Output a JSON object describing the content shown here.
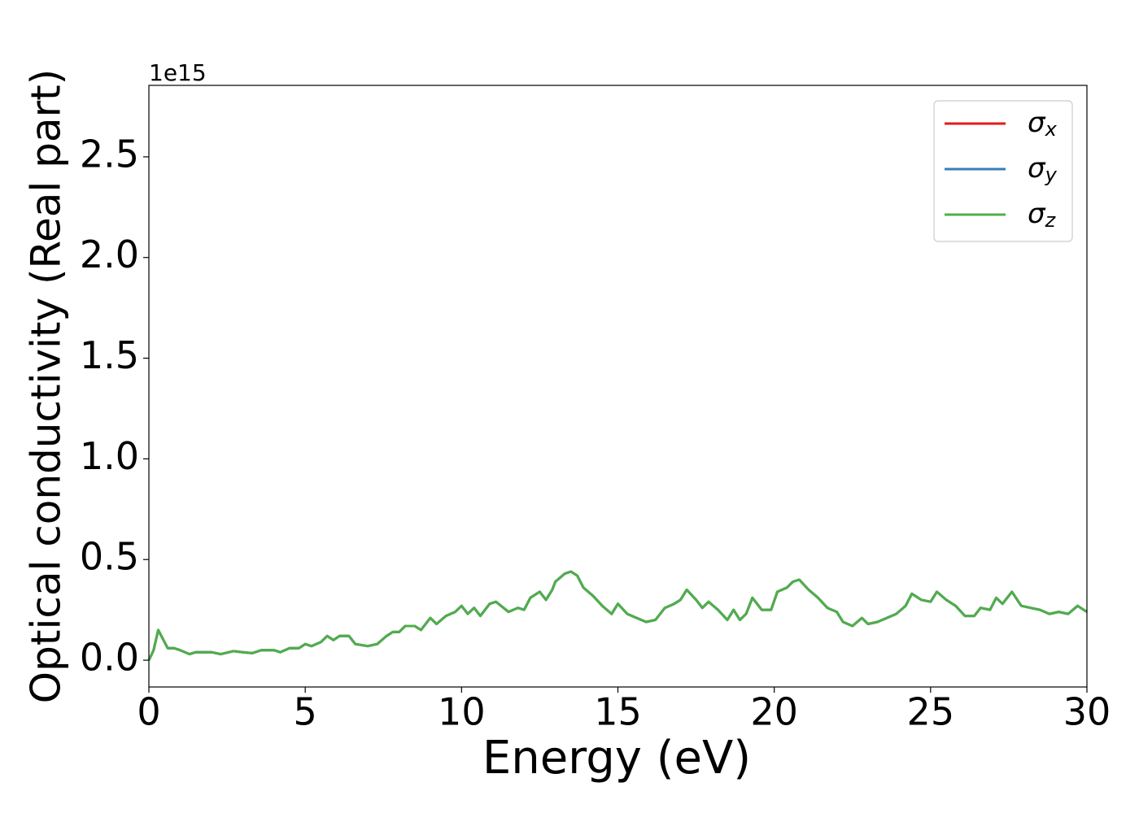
{
  "chart_data": {
    "type": "line",
    "x_label": "Energy (eV)",
    "y_label": "Optical conductivity (Real part)",
    "y_offset_label": "1e15",
    "xlim": [
      0,
      30
    ],
    "xticks": [
      0,
      5,
      10,
      15,
      20,
      25,
      30
    ],
    "ylim": [
      -0.133,
      2.855
    ],
    "yticks": [
      {
        "value": 0,
        "label": "0.0"
      },
      0.5,
      {
        "value": 1,
        "label": "1.0"
      },
      1.5,
      {
        "value": 2,
        "label": "2.0"
      },
      2.5
    ],
    "legend": "upper right",
    "x": [
      0,
      0.15,
      0.3,
      0.6,
      0.8,
      1.0,
      1.3,
      1.5,
      2.0,
      2.3,
      2.7,
      3.0,
      3.3,
      3.6,
      4.0,
      4.2,
      4.5,
      4.8,
      5.0,
      5.2,
      5.5,
      5.7,
      5.9,
      6.1,
      6.4,
      6.6,
      7.0,
      7.3,
      7.6,
      7.8,
      8.0,
      8.2,
      8.5,
      8.7,
      9.0,
      9.2,
      9.5,
      9.8,
      10.0,
      10.2,
      10.4,
      10.6,
      10.9,
      11.1,
      11.5,
      11.8,
      12.0,
      12.2,
      12.5,
      12.7,
      12.9,
      13.0,
      13.3,
      13.5,
      13.7,
      13.9,
      14.2,
      14.5,
      14.8,
      15.0,
      15.3,
      15.6,
      15.9,
      16.2,
      16.5,
      16.8,
      17.0,
      17.2,
      17.5,
      17.7,
      17.9,
      18.2,
      18.5,
      18.7,
      18.9,
      19.1,
      19.3,
      19.6,
      19.9,
      20.1,
      20.4,
      20.6,
      20.8,
      21.1,
      21.4,
      21.7,
      22.0,
      22.2,
      22.5,
      22.8,
      23.0,
      23.3,
      23.6,
      23.9,
      24.2,
      24.4,
      24.7,
      25.0,
      25.2,
      25.5,
      25.8,
      26.1,
      26.4,
      26.6,
      26.9,
      27.1,
      27.3,
      27.6,
      27.9,
      28.2,
      28.5,
      28.8,
      29.1,
      29.4,
      29.7,
      30.0
    ],
    "series": [
      {
        "name": "σx",
        "color": "#e41a1c",
        "values": [
          0.0,
          0.05,
          0.15,
          0.06,
          0.06,
          0.05,
          0.03,
          0.04,
          0.04,
          0.03,
          0.045,
          0.04,
          0.035,
          0.05,
          0.05,
          0.04,
          0.06,
          0.06,
          0.08,
          0.07,
          0.09,
          0.12,
          0.1,
          0.12,
          0.12,
          0.08,
          0.07,
          0.08,
          0.12,
          0.14,
          0.14,
          0.17,
          0.17,
          0.15,
          0.21,
          0.18,
          0.22,
          0.24,
          0.27,
          0.23,
          0.26,
          0.22,
          0.28,
          0.29,
          0.24,
          0.26,
          0.25,
          0.31,
          0.34,
          0.3,
          0.35,
          0.39,
          0.43,
          0.44,
          0.42,
          0.36,
          0.32,
          0.27,
          0.23,
          0.28,
          0.23,
          0.21,
          0.19,
          0.2,
          0.26,
          0.28,
          0.3,
          0.35,
          0.3,
          0.26,
          0.29,
          0.25,
          0.2,
          0.25,
          0.2,
          0.23,
          0.31,
          0.25,
          0.25,
          0.34,
          0.36,
          0.39,
          0.4,
          0.35,
          0.31,
          0.26,
          0.24,
          0.19,
          0.17,
          0.21,
          0.18,
          0.19,
          0.21,
          0.23,
          0.27,
          0.33,
          0.3,
          0.29,
          0.34,
          0.3,
          0.27,
          0.22,
          0.22,
          0.26,
          0.25,
          0.31,
          0.28,
          0.34,
          0.27,
          0.26,
          0.25,
          0.23,
          0.24,
          0.23,
          0.27,
          0.24
        ]
      },
      {
        "name": "σy",
        "color": "#377eb8",
        "values": [
          0.0,
          0.05,
          0.15,
          0.06,
          0.06,
          0.05,
          0.03,
          0.04,
          0.04,
          0.03,
          0.045,
          0.04,
          0.035,
          0.05,
          0.05,
          0.04,
          0.06,
          0.06,
          0.08,
          0.07,
          0.09,
          0.12,
          0.1,
          0.12,
          0.12,
          0.08,
          0.07,
          0.08,
          0.12,
          0.14,
          0.14,
          0.17,
          0.17,
          0.15,
          0.21,
          0.18,
          0.22,
          0.24,
          0.27,
          0.23,
          0.26,
          0.22,
          0.28,
          0.29,
          0.24,
          0.26,
          0.25,
          0.31,
          0.34,
          0.3,
          0.35,
          0.39,
          0.43,
          0.44,
          0.42,
          0.36,
          0.32,
          0.27,
          0.23,
          0.28,
          0.23,
          0.21,
          0.19,
          0.2,
          0.26,
          0.28,
          0.3,
          0.35,
          0.3,
          0.26,
          0.29,
          0.25,
          0.2,
          0.25,
          0.2,
          0.23,
          0.31,
          0.25,
          0.25,
          0.34,
          0.36,
          0.39,
          0.4,
          0.35,
          0.31,
          0.26,
          0.24,
          0.19,
          0.17,
          0.21,
          0.18,
          0.19,
          0.21,
          0.23,
          0.27,
          0.33,
          0.3,
          0.29,
          0.34,
          0.3,
          0.27,
          0.22,
          0.22,
          0.26,
          0.25,
          0.31,
          0.28,
          0.34,
          0.27,
          0.26,
          0.25,
          0.23,
          0.24,
          0.23,
          0.27,
          0.24
        ]
      },
      {
        "name": "σz",
        "color": "#4daf4a",
        "values": [
          0.0,
          0.05,
          0.15,
          0.06,
          0.06,
          0.05,
          0.03,
          0.04,
          0.04,
          0.03,
          0.045,
          0.04,
          0.035,
          0.05,
          0.05,
          0.04,
          0.06,
          0.06,
          0.08,
          0.07,
          0.09,
          0.12,
          0.1,
          0.12,
          0.12,
          0.08,
          0.07,
          0.08,
          0.12,
          0.14,
          0.14,
          0.17,
          0.17,
          0.15,
          0.21,
          0.18,
          0.22,
          0.24,
          0.27,
          0.23,
          0.26,
          0.22,
          0.28,
          0.29,
          0.24,
          0.26,
          0.25,
          0.31,
          0.34,
          0.3,
          0.35,
          0.39,
          0.43,
          0.44,
          0.42,
          0.36,
          0.32,
          0.27,
          0.23,
          0.28,
          0.23,
          0.21,
          0.19,
          0.2,
          0.26,
          0.28,
          0.3,
          0.35,
          0.3,
          0.26,
          0.29,
          0.25,
          0.2,
          0.25,
          0.2,
          0.23,
          0.31,
          0.25,
          0.25,
          0.34,
          0.36,
          0.39,
          0.4,
          0.35,
          0.31,
          0.26,
          0.24,
          0.19,
          0.17,
          0.21,
          0.18,
          0.19,
          0.21,
          0.23,
          0.27,
          0.33,
          0.3,
          0.29,
          0.34,
          0.3,
          0.27,
          0.22,
          0.22,
          0.26,
          0.25,
          0.31,
          0.28,
          0.34,
          0.27,
          0.26,
          0.25,
          0.23,
          0.24,
          0.23,
          0.27,
          0.24
        ]
      }
    ]
  }
}
